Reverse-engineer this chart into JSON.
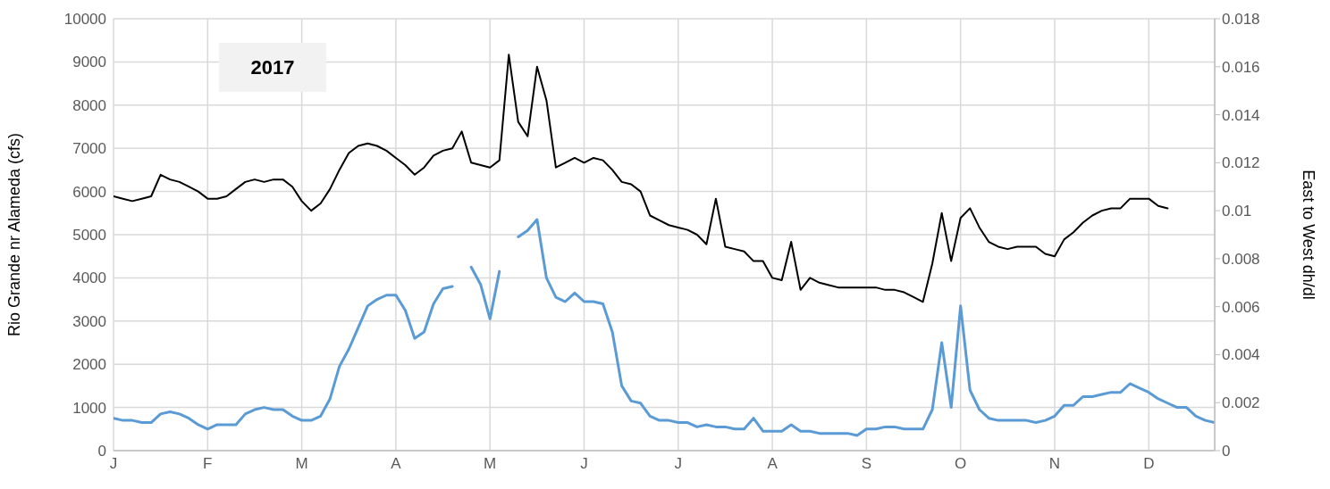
{
  "chart_data": {
    "type": "line",
    "ylabel": "Rio Grande nr Alameda (cfs)",
    "y2label": "East to West dh/dl",
    "annotations": [
      "2017"
    ],
    "categories": [
      "J",
      null,
      null,
      null,
      null,
      null,
      null,
      null,
      null,
      null,
      "F",
      null,
      null,
      null,
      null,
      null,
      null,
      null,
      null,
      null,
      "M",
      null,
      null,
      null,
      null,
      null,
      null,
      null,
      null,
      null,
      "A",
      null,
      null,
      null,
      null,
      null,
      null,
      null,
      null,
      null,
      "M",
      null,
      null,
      null,
      null,
      null,
      null,
      null,
      null,
      null,
      "J",
      null,
      null,
      null,
      null,
      null,
      null,
      null,
      null,
      null,
      "J",
      null,
      null,
      null,
      null,
      null,
      null,
      null,
      null,
      null,
      "A",
      null,
      null,
      null,
      null,
      null,
      null,
      null,
      null,
      null,
      "S",
      null,
      null,
      null,
      null,
      null,
      null,
      null,
      null,
      null,
      "O",
      null,
      null,
      null,
      null,
      null,
      null,
      null,
      null,
      null,
      "N",
      null,
      null,
      null,
      null,
      null,
      null,
      null,
      null,
      null,
      "D",
      null,
      null,
      null,
      null,
      null,
      null,
      null
    ],
    "ylim": [
      0,
      10000
    ],
    "yticks": [
      0,
      1000,
      2000,
      3000,
      4000,
      5000,
      6000,
      7000,
      8000,
      9000,
      10000
    ],
    "y2lim": [
      0,
      0.018
    ],
    "y2ticks": [
      0,
      0.002,
      0.004,
      0.006,
      0.008,
      0.01,
      0.012,
      0.014,
      0.016,
      0.018
    ],
    "grid": true,
    "marker": "none",
    "line_style": "solid",
    "series": [
      {
        "color": "#5b9bd5",
        "values": [
          750,
          700,
          700,
          650,
          650,
          850,
          900,
          850,
          750,
          600,
          500,
          600,
          600,
          600,
          850,
          950,
          1000,
          950,
          950,
          800,
          700,
          700,
          800,
          1200,
          1950,
          2350,
          2850,
          3350,
          3500,
          3600,
          3600,
          3250,
          2600,
          2750,
          3400,
          3750,
          3800,
          null,
          4250,
          3850,
          3050,
          4150,
          null,
          4950,
          5100,
          5350,
          4000,
          3550,
          3450,
          3650,
          3450,
          3450,
          3400,
          2750,
          1500,
          1150,
          1100,
          800,
          700,
          700,
          650,
          650,
          550,
          600,
          550,
          550,
          500,
          500,
          750,
          450,
          450,
          450,
          600,
          450,
          450,
          400,
          400,
          400,
          400,
          350,
          500,
          500,
          550,
          550,
          500,
          500,
          500,
          950,
          2500,
          1000,
          3350,
          1400,
          950,
          750,
          700,
          700,
          700,
          700,
          650,
          700,
          800,
          1050,
          1050,
          1250,
          1250,
          1300,
          1350,
          1350,
          1550,
          1450,
          1350,
          1200,
          1100,
          1000,
          1000,
          800,
          700,
          650
        ]
      },
      {
        "color": "#000000",
        "axis": "y2",
        "values": [
          0.0106,
          0.0105,
          0.0104,
          0.0105,
          0.0106,
          0.0115,
          0.0113,
          0.0112,
          0.011,
          0.0108,
          0.0105,
          0.0105,
          0.0106,
          0.0109,
          0.0112,
          0.0113,
          0.0112,
          0.0113,
          0.0113,
          0.011,
          0.0104,
          0.01,
          0.0103,
          0.0109,
          0.0117,
          0.0124,
          0.0127,
          0.0128,
          0.0127,
          0.0125,
          0.0122,
          0.0119,
          0.0115,
          0.0118,
          0.0123,
          0.0125,
          0.0126,
          0.0133,
          0.012,
          0.0119,
          0.0118,
          0.0121,
          0.0165,
          0.0137,
          0.0131,
          0.016,
          0.0146,
          0.0118,
          0.012,
          0.0122,
          0.012,
          0.0122,
          0.0121,
          0.0117,
          0.0112,
          0.0111,
          0.0108,
          0.0098,
          0.0096,
          0.0094,
          0.0093,
          0.0092,
          0.009,
          0.0086,
          0.0105,
          0.0085,
          0.0084,
          0.0083,
          0.0079,
          0.0079,
          0.0072,
          0.0071,
          0.0087,
          0.0067,
          0.0072,
          0.007,
          0.0069,
          0.0068,
          0.0068,
          0.0068,
          0.0068,
          0.0068,
          0.0067,
          0.0067,
          0.0066,
          0.0064,
          0.0062,
          0.0078,
          0.0099,
          0.0079,
          0.0097,
          0.0101,
          0.0093,
          0.0087,
          0.0085,
          0.0084,
          0.0085,
          0.0085,
          0.0085,
          0.0082,
          0.0081,
          0.0088,
          0.0091,
          0.0095,
          0.0098,
          0.01,
          0.0101,
          0.0101,
          0.0105,
          0.0105,
          0.0105,
          0.0102,
          0.0101,
          null,
          null,
          null,
          null,
          null
        ]
      }
    ]
  }
}
